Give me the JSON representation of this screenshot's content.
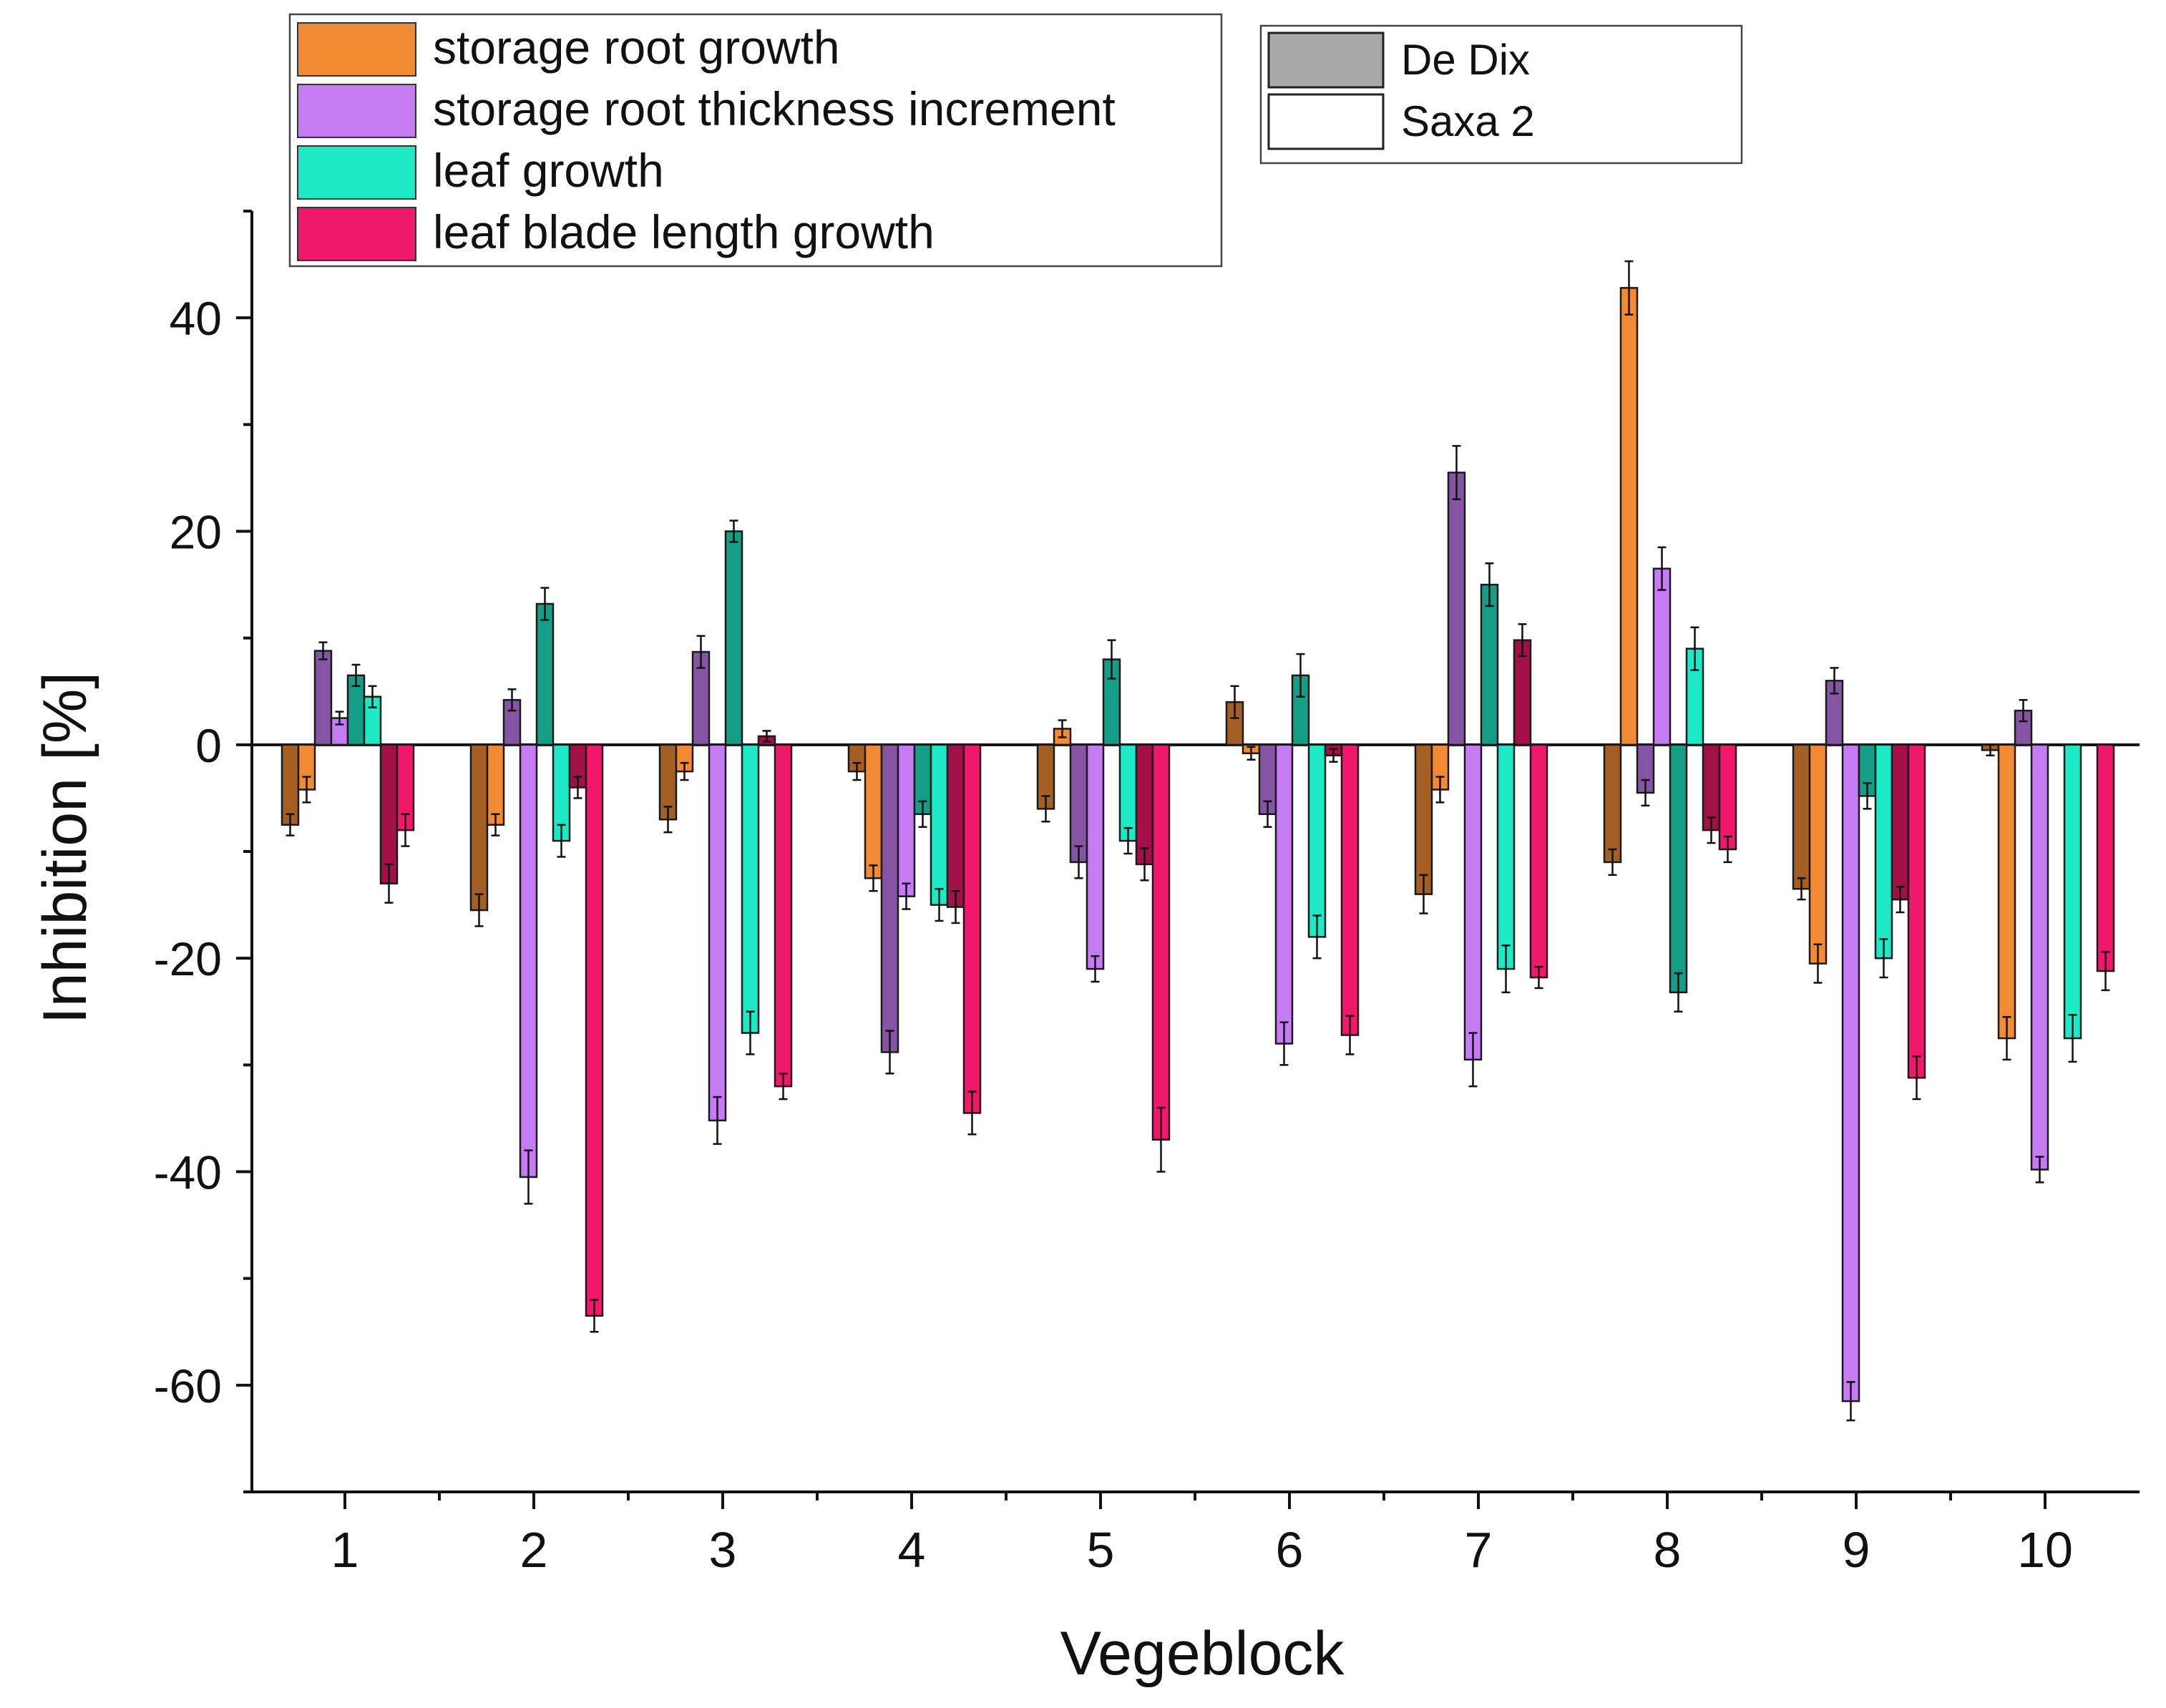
{
  "chart_data": {
    "type": "bar",
    "title": "",
    "xlabel": "Vegeblock",
    "ylabel": "Inhibition [%]",
    "ylim": [
      -70,
      50
    ],
    "yticks": [
      -60,
      -40,
      -20,
      0,
      20,
      40
    ],
    "categories": [
      "1",
      "2",
      "3",
      "4",
      "5",
      "6",
      "7",
      "8",
      "9",
      "10"
    ],
    "grid": false,
    "colors": {
      "storage root growth": "#f28a34",
      "storage root thickness increment": "#c57cf2",
      "leaf growth": "#1de9c6",
      "leaf blade length growth": "#f0186a"
    },
    "variety_shade": {
      "De Dix": "dark",
      "Saxa 2": "light"
    },
    "legend_parameters": [
      "storage root growth",
      "storage root thickness increment",
      "leaf growth",
      "leaf blade length growth"
    ],
    "legend_varieties": [
      "De Dix",
      "Saxa 2"
    ],
    "series": [
      {
        "name": "storage root growth",
        "variety": "De Dix",
        "values": [
          -7.5,
          -15.5,
          -7,
          -2.5,
          -6,
          4,
          -14,
          -11,
          -13.5,
          -0.5
        ],
        "errors": [
          1.0,
          1.5,
          1.2,
          0.8,
          1.2,
          1.5,
          1.8,
          1.2,
          1.0,
          0.5
        ]
      },
      {
        "name": "storage root growth",
        "variety": "Saxa 2",
        "values": [
          -4.2,
          -7.5,
          -2.5,
          -12.5,
          1.5,
          -0.8,
          -4.2,
          42.8,
          -20.5,
          -27.5
        ],
        "errors": [
          1.2,
          1.0,
          0.8,
          1.2,
          0.8,
          0.6,
          1.2,
          2.5,
          1.8,
          2.0
        ]
      },
      {
        "name": "storage root thickness increment",
        "variety": "De Dix",
        "values": [
          8.8,
          4.2,
          8.7,
          -28.8,
          -11,
          -6.5,
          25.5,
          -4.5,
          6,
          3.2
        ],
        "errors": [
          0.8,
          1.0,
          1.5,
          2.0,
          1.5,
          1.2,
          2.5,
          1.2,
          1.2,
          1.0
        ]
      },
      {
        "name": "storage root thickness increment",
        "variety": "Saxa 2",
        "values": [
          2.5,
          -40.5,
          -35.2,
          -14.2,
          -21,
          -28,
          -29.5,
          16.5,
          -61.5,
          -39.8
        ],
        "errors": [
          0.6,
          2.5,
          2.2,
          1.2,
          1.2,
          2.0,
          2.5,
          2.0,
          1.8,
          1.2
        ]
      },
      {
        "name": "leaf growth",
        "variety": "De Dix",
        "values": [
          6.5,
          13.2,
          20,
          -6.5,
          8,
          6.5,
          15,
          -23.2,
          -4.8,
          null
        ],
        "errors": [
          1.0,
          1.5,
          1.0,
          1.2,
          1.8,
          2.0,
          2.0,
          1.8,
          1.2,
          null
        ]
      },
      {
        "name": "leaf growth",
        "variety": "Saxa 2",
        "values": [
          4.5,
          -9,
          -27,
          -15,
          -9,
          -18,
          -21,
          9,
          -20,
          -27.5
        ],
        "errors": [
          1.0,
          1.5,
          2.0,
          1.5,
          1.2,
          2.0,
          2.2,
          2.0,
          1.8,
          2.2
        ]
      },
      {
        "name": "leaf blade length growth",
        "variety": "De Dix",
        "values": [
          -13,
          -4,
          0.8,
          -15.2,
          -11.2,
          -1,
          9.8,
          -8,
          -14.5,
          null
        ],
        "errors": [
          1.8,
          1.0,
          0.5,
          1.5,
          1.5,
          0.6,
          1.5,
          1.2,
          1.2,
          null
        ]
      },
      {
        "name": "leaf blade length growth",
        "variety": "Saxa 2",
        "values": [
          -8,
          -53.5,
          -32,
          -34.5,
          -37,
          -27.2,
          -21.8,
          -9.8,
          -31.2,
          -21.2
        ],
        "errors": [
          1.5,
          1.5,
          1.2,
          2.0,
          3.0,
          1.8,
          1.0,
          1.2,
          2.0,
          1.8
        ]
      }
    ]
  }
}
